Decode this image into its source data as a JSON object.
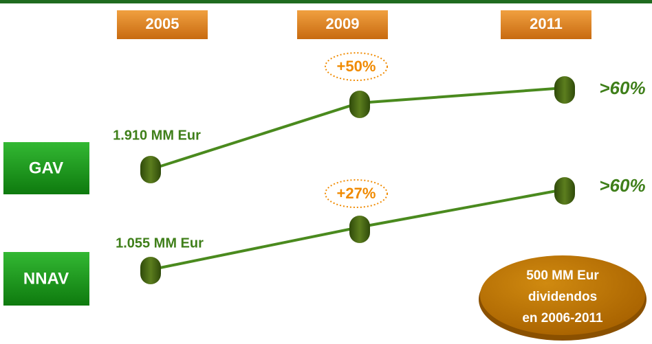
{
  "years": [
    "2005",
    "2009",
    "2011"
  ],
  "rows": [
    {
      "label": "GAV",
      "start": "1.910 MM Eur",
      "growth": "+50%",
      "target": ">60%"
    },
    {
      "label": "NNAV",
      "start": "1.055 MM Eur",
      "growth": "+27%",
      "target": ">60%"
    }
  ],
  "note": [
    "500 MM Eur",
    "dividendos",
    "en 2006-2011"
  ]
}
